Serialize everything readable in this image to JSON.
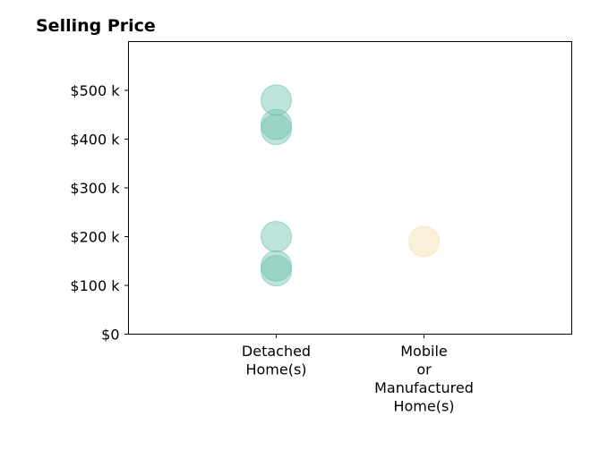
{
  "chart_data": {
    "type": "scatter",
    "title": "Selling Price",
    "xlabel": "",
    "ylabel": "",
    "categories": [
      [
        "Detached",
        "Home(s)"
      ],
      [
        "Mobile",
        "or",
        "Manufactured",
        "Home(s)"
      ]
    ],
    "ylim": [
      0,
      600000
    ],
    "y_ticks": [
      {
        "value": 0,
        "label": "$0"
      },
      {
        "value": 100000,
        "label": "$100 k"
      },
      {
        "value": 200000,
        "label": "$200 k"
      },
      {
        "value": 300000,
        "label": "$300 k"
      },
      {
        "value": 400000,
        "label": "$400 k"
      },
      {
        "value": 500000,
        "label": "$500 k"
      }
    ],
    "grid": false,
    "series": [
      {
        "category_index": 0,
        "color": "#6cc0b0",
        "values": [
          480000,
          430000,
          420000,
          200000,
          140000,
          130000
        ]
      },
      {
        "category_index": 1,
        "color": "#f3dca8",
        "values": [
          190000
        ]
      }
    ]
  }
}
